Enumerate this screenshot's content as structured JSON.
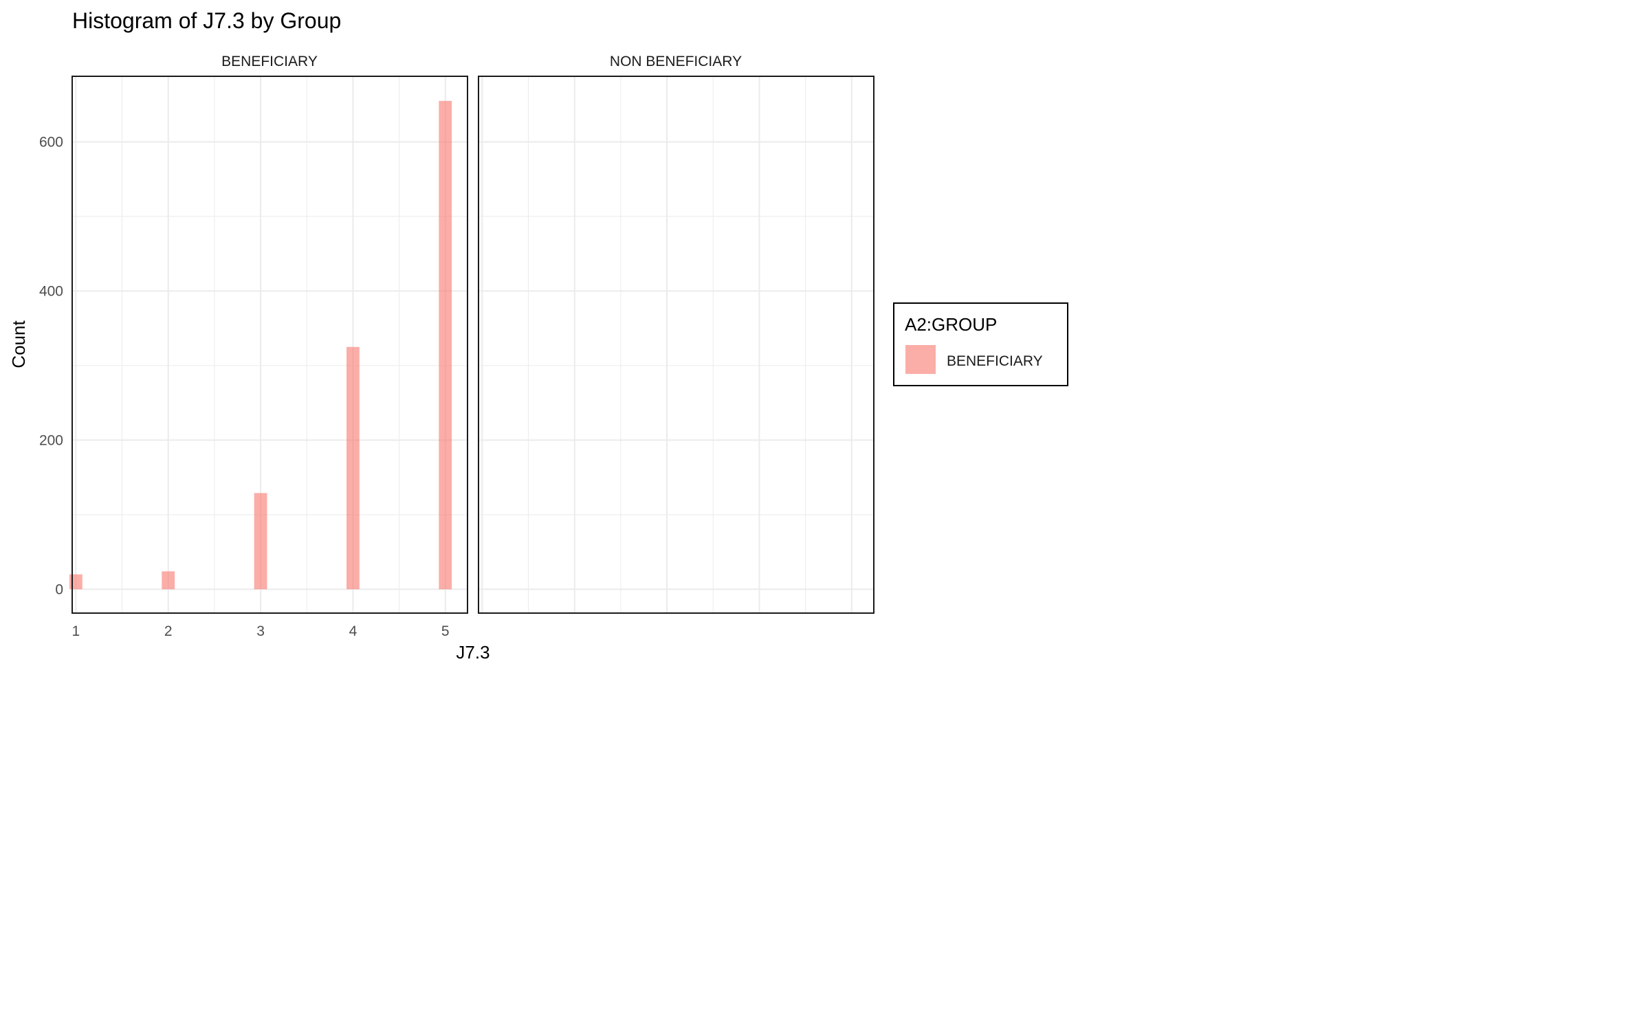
{
  "chart_data": {
    "type": "bar",
    "title": "Histogram of J7.3 by Group",
    "xlabel": "J7.3",
    "ylabel": "Count",
    "facets": [
      "BENEFICIARY",
      "NON BENEFICIARY"
    ],
    "x_ticks": [
      1,
      2,
      3,
      4,
      5
    ],
    "y_ticks": [
      0,
      200,
      400,
      600
    ],
    "xlim": [
      0.96,
      5.24
    ],
    "ylim": [
      -32,
      688
    ],
    "grid": true,
    "series": [
      {
        "name": "BENEFICIARY",
        "facet": "BENEFICIARY",
        "x": [
          1,
          2,
          3,
          4,
          5
        ],
        "values": [
          20,
          24,
          129,
          325,
          655
        ]
      }
    ],
    "legend": {
      "title": "A2:GROUP",
      "entries": [
        "BENEFICIARY"
      ],
      "placement": "right"
    },
    "colors": {
      "BENEFICIARY": "#F8766D"
    }
  }
}
